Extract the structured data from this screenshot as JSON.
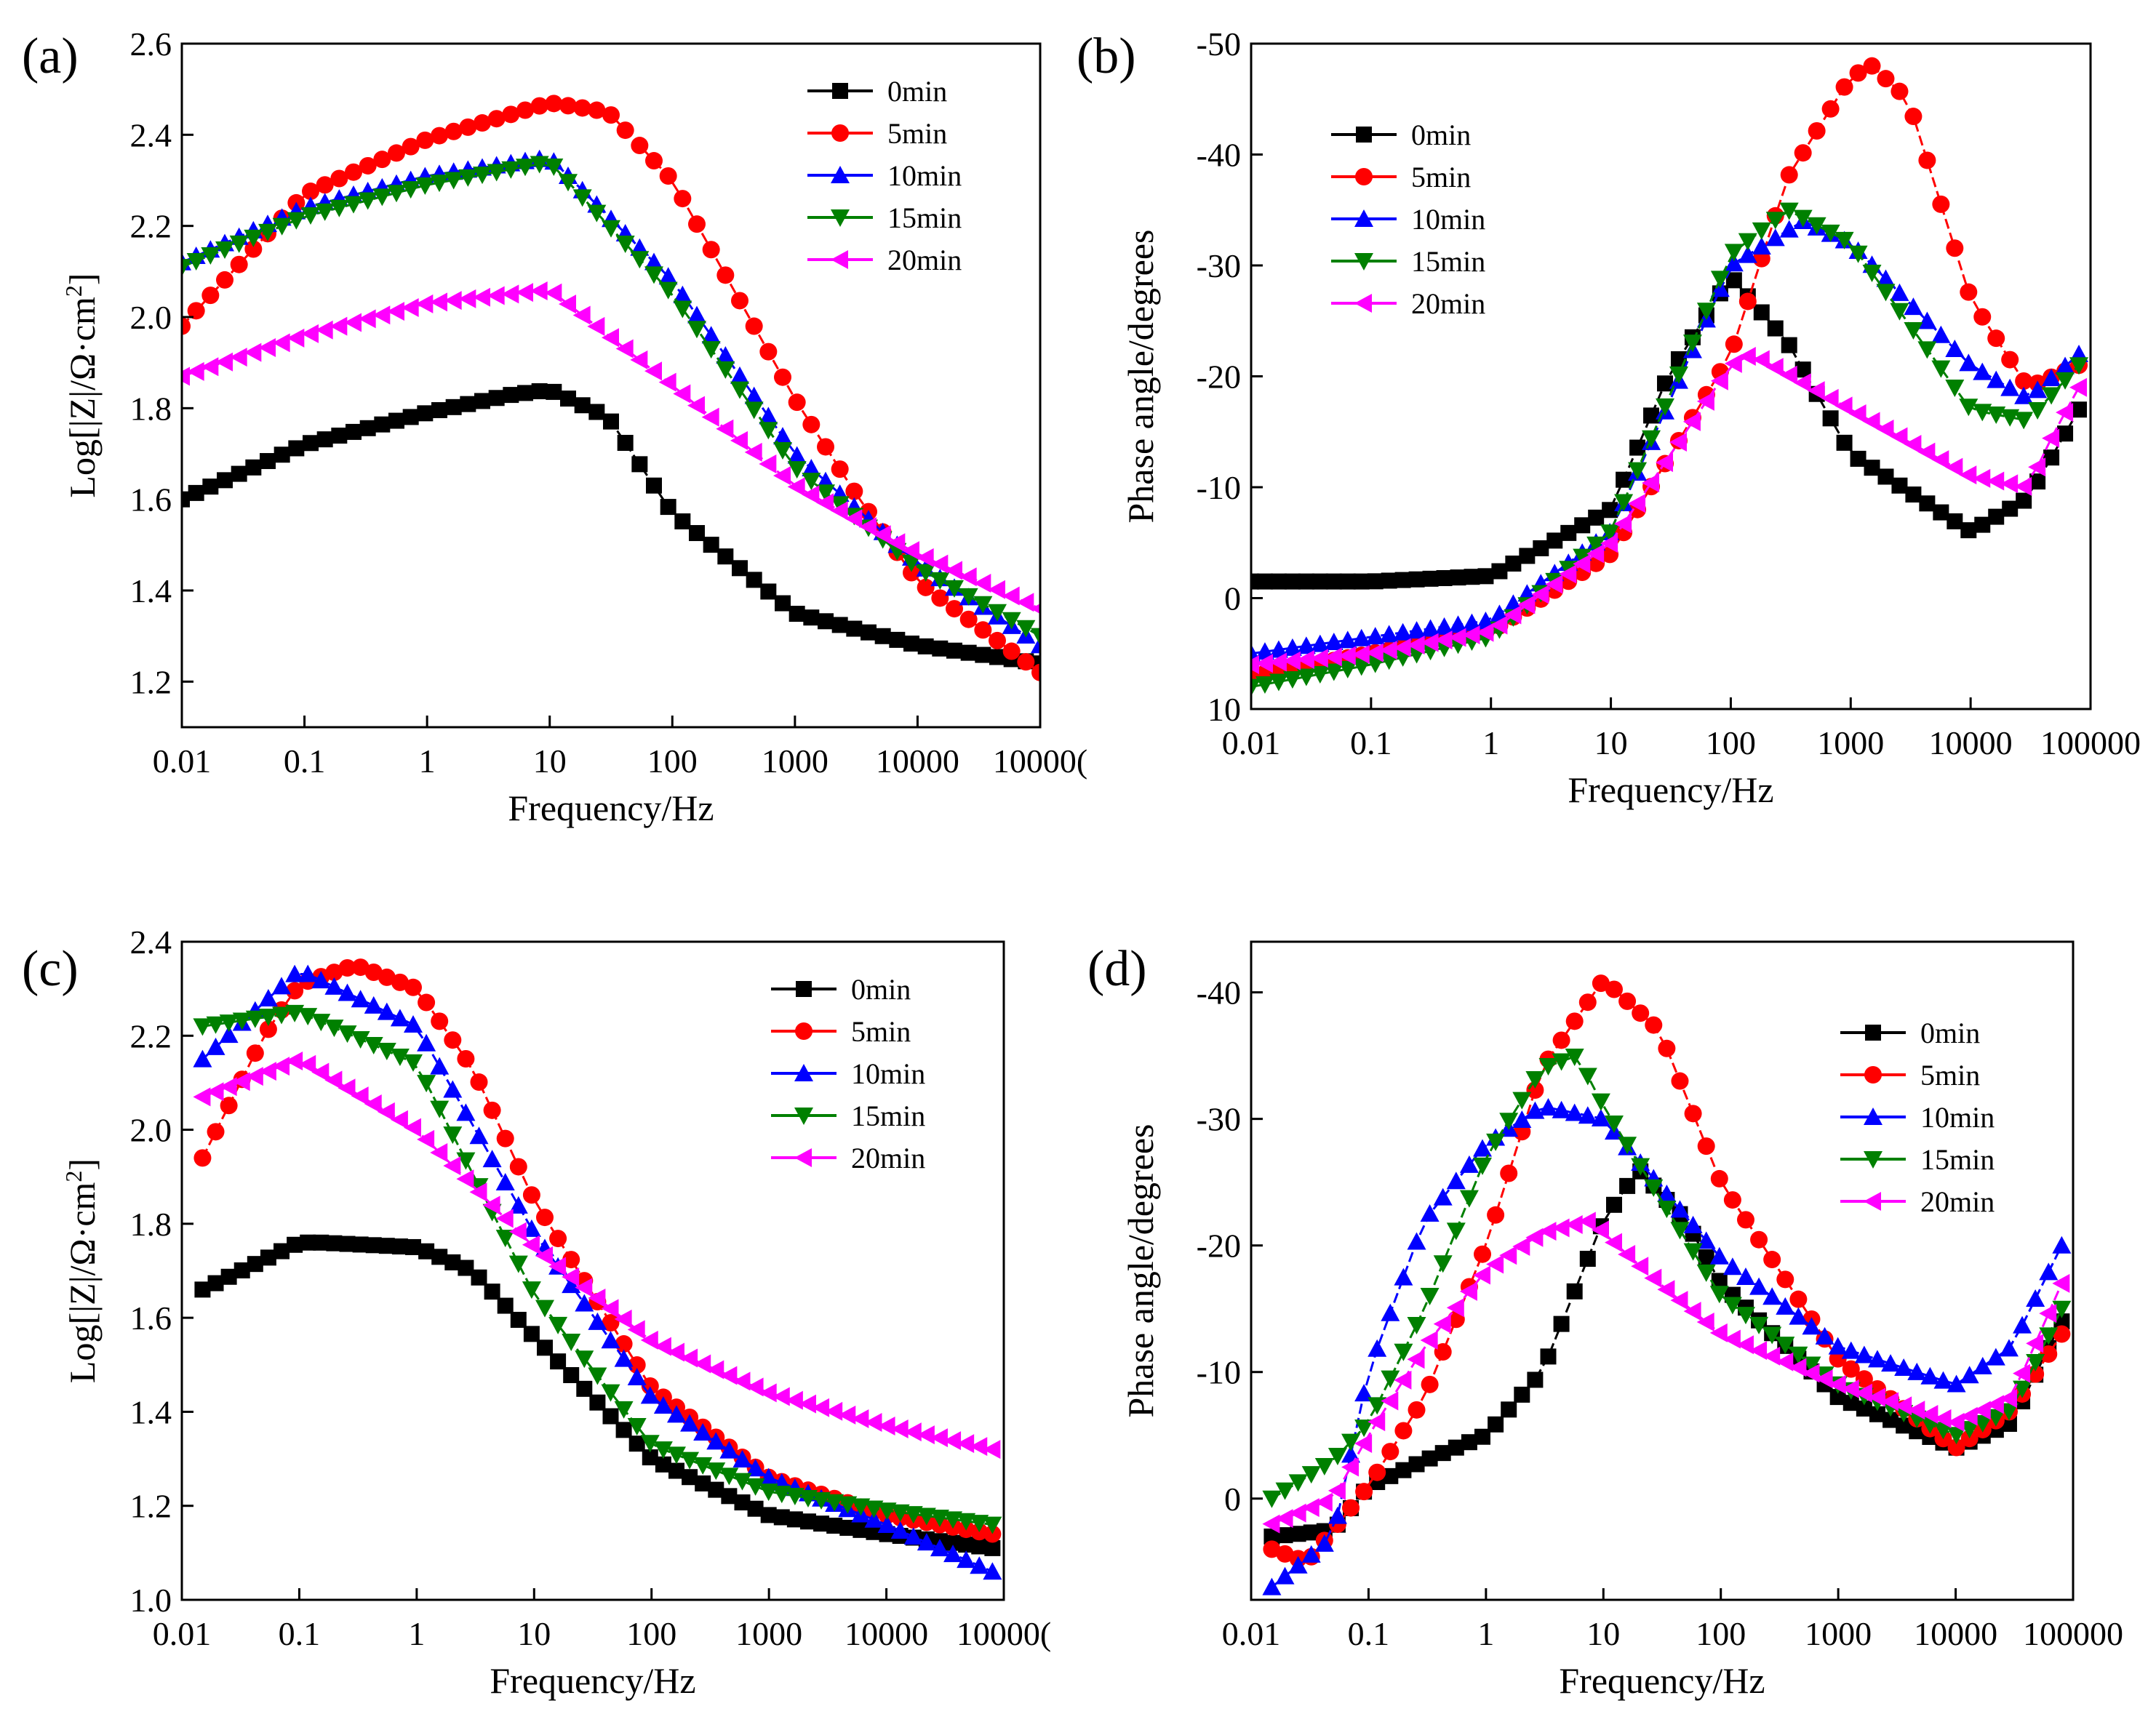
{
  "figure": {
    "series_colors": {
      "0min": "#000000",
      "5min": "#ff0000",
      "10min": "#0000ff",
      "15min": "#008000",
      "20min": "#ff00ff"
    }
  },
  "chart_data": [
    {
      "panel": "(a)",
      "type": "line",
      "xscale": "log",
      "xlabel": "Frequency/Hz",
      "ylabel": "Log[|Z|/Ω·cm²]",
      "ylabel_parts": {
        "main": "Log[|Z|/Ω·cm",
        "sup": "2",
        "end": "]"
      },
      "xlim": [
        0.01,
        100000
      ],
      "ylim": [
        1.1,
        2.6
      ],
      "xticks": [
        "0.01",
        "0.1",
        "1",
        "10",
        "100",
        "1000",
        "10000",
        "10000("
      ],
      "yticks": [
        "1.2",
        "1.4",
        "1.6",
        "1.8",
        "2.0",
        "2.2",
        "2.4",
        "2.6"
      ],
      "legend": [
        "0min",
        "5min",
        "10min",
        "15min",
        "20min"
      ],
      "legend_position": "top-right",
      "series": [
        {
          "name": "0min",
          "marker": "square",
          "x": [
            0.01,
            0.1,
            1,
            5,
            10,
            30,
            100,
            1000,
            10000,
            100000
          ],
          "y": [
            1.6,
            1.72,
            1.79,
            1.83,
            1.84,
            1.78,
            1.57,
            1.35,
            1.28,
            1.24
          ]
        },
        {
          "name": "5min",
          "marker": "circle",
          "x": [
            0.01,
            0.1,
            1,
            10,
            30,
            100,
            1000,
            3000,
            10000,
            100000
          ],
          "y": [
            1.98,
            2.27,
            2.39,
            2.47,
            2.45,
            2.3,
            1.82,
            1.62,
            1.42,
            1.22
          ]
        },
        {
          "name": "10min",
          "marker": "triangle-up",
          "x": [
            0.01,
            0.1,
            1,
            10,
            100,
            1000,
            10000,
            100000
          ],
          "y": [
            2.12,
            2.24,
            2.31,
            2.35,
            2.08,
            1.7,
            1.46,
            1.28
          ]
        },
        {
          "name": "15min",
          "marker": "triangle-down",
          "x": [
            0.01,
            0.1,
            1,
            10,
            100,
            1000,
            10000,
            100000
          ],
          "y": [
            2.11,
            2.22,
            2.29,
            2.34,
            2.05,
            1.67,
            1.45,
            1.3
          ]
        },
        {
          "name": "20min",
          "marker": "triangle-left",
          "x": [
            0.01,
            0.1,
            1,
            10,
            100,
            1000,
            10000,
            100000
          ],
          "y": [
            1.87,
            1.96,
            2.03,
            2.06,
            1.85,
            1.63,
            1.48,
            1.36
          ]
        }
      ]
    },
    {
      "panel": "(b)",
      "type": "line",
      "xscale": "log",
      "xlabel": "Frequency/Hz",
      "ylabel": "Phase angle/degrees",
      "xlim": [
        0.01,
        100000
      ],
      "ylim": [
        10,
        -50
      ],
      "xticks": [
        "0.01",
        "0.1",
        "1",
        "10",
        "100",
        "1000",
        "10000",
        "100000"
      ],
      "yticks": [
        "10",
        "0",
        "-10",
        "-20",
        "-30",
        "-40",
        "-50"
      ],
      "legend": [
        "0min",
        "5min",
        "10min",
        "15min",
        "20min"
      ],
      "legend_position": "top-left",
      "series": [
        {
          "name": "0min",
          "marker": "square",
          "x": [
            0.01,
            0.1,
            1,
            10,
            30,
            100,
            300,
            1000,
            10000,
            30000,
            80000
          ],
          "y": [
            -1.5,
            -1.5,
            -2,
            -8,
            -20,
            -29,
            -23,
            -13,
            -6,
            -9,
            -17
          ]
        },
        {
          "name": "5min",
          "marker": "circle",
          "x": [
            0.01,
            0.1,
            1,
            10,
            100,
            300,
            1000,
            1500,
            3000,
            10000,
            30000,
            80000
          ],
          "y": [
            7,
            5,
            3,
            -4,
            -22,
            -38,
            -47,
            -48,
            -45,
            -27,
            -19,
            -21
          ]
        },
        {
          "name": "10min",
          "marker": "triangle-up",
          "x": [
            0.01,
            0.1,
            1,
            10,
            100,
            400,
            1000,
            10000,
            30000,
            80000
          ],
          "y": [
            5,
            3.5,
            2,
            -6,
            -30,
            -34,
            -32,
            -21,
            -18,
            -22
          ]
        },
        {
          "name": "15min",
          "marker": "triangle-down",
          "x": [
            0.01,
            0.1,
            1,
            10,
            100,
            300,
            1000,
            10000,
            30000,
            80000
          ],
          "y": [
            8,
            6,
            3.5,
            -6,
            -31,
            -35,
            -32,
            -17,
            -16,
            -21
          ]
        },
        {
          "name": "20min",
          "marker": "triangle-left",
          "x": [
            0.01,
            0.1,
            1,
            10,
            100,
            150,
            1000,
            10000,
            30000,
            50000,
            80000
          ],
          "y": [
            6,
            5,
            3,
            -5,
            -21,
            -22,
            -17,
            -11,
            -10,
            -15,
            -19
          ]
        }
      ]
    },
    {
      "panel": "(c)",
      "type": "line",
      "xscale": "log",
      "xlabel": "Frequency/Hz",
      "ylabel": "Log[|Z|/Ω·cm²]",
      "ylabel_parts": {
        "main": "Log[|Z|/Ω·cm",
        "sup": "2",
        "end": "]"
      },
      "xlim": [
        0.01,
        100000
      ],
      "ylim": [
        1.0,
        2.4
      ],
      "xticks": [
        "0.01",
        "0.1",
        "1",
        "10",
        "100",
        "1000",
        "10000",
        "10000("
      ],
      "yticks": [
        "1.0",
        "1.2",
        "1.4",
        "1.6",
        "1.8",
        "2.0",
        "2.2",
        "2.4"
      ],
      "legend": [
        "0min",
        "5min",
        "10min",
        "15min",
        "20min"
      ],
      "legend_position": "top-right",
      "series": [
        {
          "name": "0min",
          "marker": "square",
          "x": [
            0.015,
            0.1,
            0.15,
            1,
            3,
            10,
            100,
            1000,
            10000,
            80000
          ],
          "y": [
            1.66,
            1.76,
            1.76,
            1.75,
            1.7,
            1.56,
            1.3,
            1.18,
            1.14,
            1.11
          ]
        },
        {
          "name": "5min",
          "marker": "circle",
          "x": [
            0.015,
            0.05,
            0.1,
            0.3,
            1,
            3,
            10,
            100,
            1000,
            10000,
            80000
          ],
          "y": [
            1.94,
            2.2,
            2.31,
            2.35,
            2.3,
            2.13,
            1.85,
            1.45,
            1.26,
            1.18,
            1.14
          ]
        },
        {
          "name": "10min",
          "marker": "triangle-up",
          "x": [
            0.015,
            0.1,
            1,
            10,
            100,
            1000,
            10000,
            80000
          ],
          "y": [
            2.15,
            2.34,
            2.22,
            1.78,
            1.43,
            1.26,
            1.16,
            1.06
          ]
        },
        {
          "name": "15min",
          "marker": "triangle-down",
          "x": [
            0.015,
            0.1,
            1,
            10,
            100,
            1000,
            10000,
            80000
          ],
          "y": [
            2.22,
            2.25,
            2.14,
            1.65,
            1.33,
            1.23,
            1.19,
            1.16
          ]
        },
        {
          "name": "20min",
          "marker": "triangle-left",
          "x": [
            0.015,
            0.1,
            1,
            10,
            100,
            1000,
            10000,
            80000
          ],
          "y": [
            2.07,
            2.15,
            2.0,
            1.75,
            1.55,
            1.44,
            1.37,
            1.32
          ]
        }
      ]
    },
    {
      "panel": "(d)",
      "type": "line",
      "xscale": "log",
      "xlabel": "Frequency/Hz",
      "ylabel": "Phase angle/degrees",
      "xlim": [
        0.01,
        100000
      ],
      "ylim": [
        8,
        -44
      ],
      "xticks": [
        "0.01",
        "0.1",
        "1",
        "10",
        "100",
        "1000",
        "10000",
        "100000"
      ],
      "yticks": [
        "0",
        "-10",
        "-20",
        "-30",
        "-40"
      ],
      "legend": [
        "0min",
        "5min",
        "10min",
        "15min",
        "20min"
      ],
      "legend_position": "top-right",
      "series": [
        {
          "name": "0min",
          "marker": "square",
          "x": [
            0.015,
            0.05,
            0.1,
            0.3,
            1,
            3,
            10,
            20,
            50,
            100,
            1000,
            10000,
            30000,
            80000
          ],
          "y": [
            3,
            2.5,
            -1,
            -3,
            -5,
            -10,
            -22,
            -26,
            -22,
            -17,
            -8,
            -4,
            -6,
            -14
          ]
        },
        {
          "name": "5min",
          "marker": "circle",
          "x": [
            0.015,
            0.03,
            0.1,
            0.3,
            1,
            3,
            10,
            30,
            100,
            1000,
            10000,
            30000,
            80000
          ],
          "y": [
            4,
            5,
            -1,
            -8,
            -20,
            -34,
            -41,
            -37,
            -25,
            -11,
            -4,
            -7,
            -13
          ]
        },
        {
          "name": "10min",
          "marker": "triangle-up",
          "x": [
            0.015,
            0.05,
            0.1,
            0.3,
            1,
            3,
            10,
            100,
            1000,
            10000,
            30000,
            80000
          ],
          "y": [
            7,
            3,
            -10,
            -22,
            -28,
            -31,
            -30,
            -19,
            -12,
            -9,
            -12,
            -20
          ]
        },
        {
          "name": "15min",
          "marker": "triangle-down",
          "x": [
            0.015,
            0.05,
            0.1,
            0.3,
            1,
            3,
            6,
            10,
            100,
            1000,
            10000,
            30000,
            80000
          ],
          "y": [
            0,
            -3,
            -6,
            -15,
            -27,
            -34,
            -35,
            -31,
            -16,
            -9,
            -5,
            -7,
            -15
          ]
        },
        {
          "name": "20min",
          "marker": "triangle-left",
          "x": [
            0.015,
            0.05,
            0.1,
            0.3,
            1,
            3,
            8,
            10,
            30,
            100,
            1000,
            10000,
            30000,
            80000
          ],
          "y": [
            2,
            0,
            -5,
            -12,
            -18,
            -21,
            -22,
            -21,
            -17,
            -13,
            -9,
            -6,
            -8,
            -17
          ]
        }
      ]
    }
  ]
}
